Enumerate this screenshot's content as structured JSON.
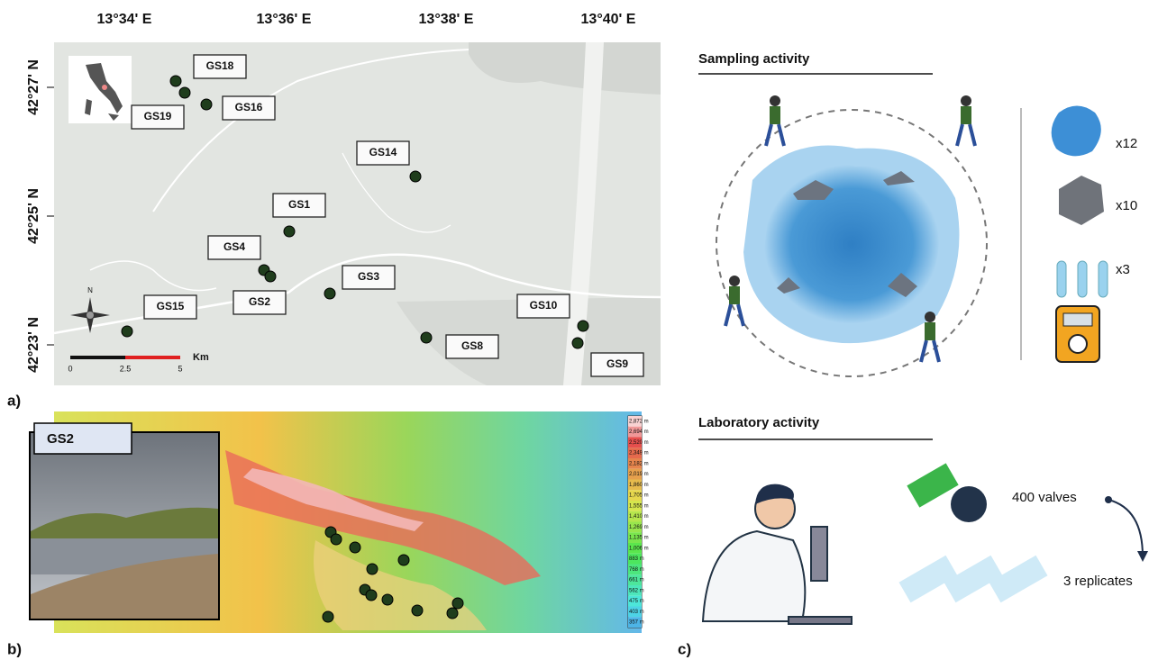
{
  "panel_a": {
    "label": "a)",
    "longitude_labels": [
      "13°34' E",
      "13°36' E",
      "13°38' E",
      "13°40' E"
    ],
    "latitude_labels": [
      "42°27' N",
      "42°25' N",
      "42°23' N"
    ],
    "sites": [
      "GS18",
      "GS19",
      "GS16",
      "GS14",
      "GS1",
      "GS4",
      "GS2",
      "GS3",
      "GS15",
      "GS10",
      "GS8",
      "GS9"
    ],
    "north": "N",
    "scale_bar": {
      "ticks": [
        "0",
        "2.5",
        "5"
      ],
      "unit": "Km"
    }
  },
  "panel_b": {
    "label": "b)",
    "photo_label": "GS2",
    "elevation_legend": [
      "2,872 m",
      "2,694 m",
      "2,520 m",
      "2,349 m",
      "2,182 m",
      "2,019 m",
      "1,860 m",
      "1,705 m",
      "1,555 m",
      "1,410 m",
      "1,269 m",
      "1,135 m",
      "1,006 m",
      "883 m",
      "768 m",
      "661 m",
      "562 m",
      "475 m",
      "403 m",
      "357 m"
    ]
  },
  "panel_c": {
    "label": "c)",
    "sampling_title": "Sampling activity",
    "counts": [
      "x12",
      "x10",
      "x3"
    ],
    "lab_title": "Laboratory activity",
    "valves": "400 valves",
    "replicates": "3 replicates"
  }
}
